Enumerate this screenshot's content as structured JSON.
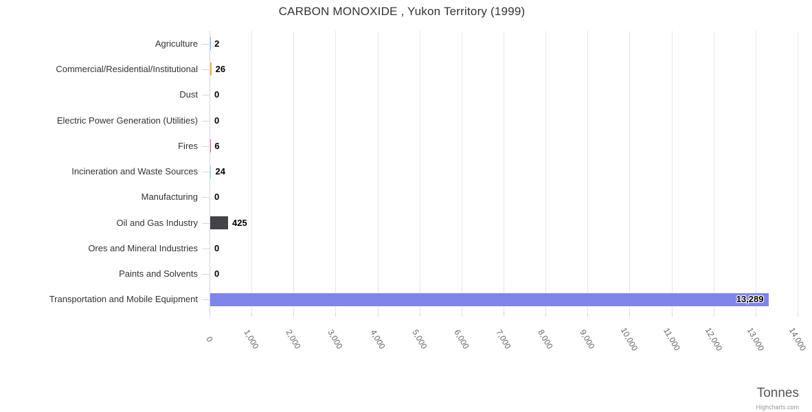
{
  "chart_data": {
    "type": "bar",
    "orientation": "horizontal",
    "title": "CARBON MONOXIDE , Yukon Territory (1999)",
    "xlabel": "Tonnes",
    "ylabel": "",
    "xlim": [
      0,
      14000
    ],
    "tick_interval": 1000,
    "x_tick_labels": [
      "0",
      "1,000",
      "2,000",
      "3,000",
      "4,000",
      "5,000",
      "6,000",
      "7,000",
      "8,000",
      "9,000",
      "10,000",
      "11,000",
      "12,000",
      "13,000",
      "14,000"
    ],
    "grid": true,
    "legend": false,
    "categories": [
      "Agriculture",
      "Commercial/Residential/Institutional",
      "Dust",
      "Electric Power Generation (Utilities)",
      "Fires",
      "Incineration and Waste Sources",
      "Manufacturing",
      "Oil and Gas Industry",
      "Ores and Mineral Industries",
      "Paints and Solvents",
      "Transportation and Mobile Equipment"
    ],
    "values": [
      2,
      26,
      0,
      0,
      6,
      24,
      0,
      425,
      0,
      0,
      13289
    ],
    "value_labels": [
      "2",
      "26",
      "0",
      "0",
      "6",
      "24",
      "0",
      "425",
      "0",
      "0",
      "13,289"
    ],
    "bar_colors": [
      "#7cb5ec",
      "#eab430",
      "#90ed7d",
      "#f7a35c",
      "#f15c80",
      "#91e8e1",
      "#e4d354",
      "#434348",
      "#f45b5b",
      "#2b908f",
      "#8085e9"
    ]
  },
  "credits": {
    "label": "Highcharts.com"
  },
  "style": {
    "background": "#ffffff",
    "axis_line_color": "#ccd6eb",
    "grid_line_color": "#e6e6e6",
    "tick_color": "#ccd6eb",
    "title_color": "#333333",
    "category_label_color": "#333333",
    "x_label_color": "#666666",
    "data_label_color": "#000000",
    "axis_title_color": "#555555",
    "credits_color": "#999999"
  }
}
